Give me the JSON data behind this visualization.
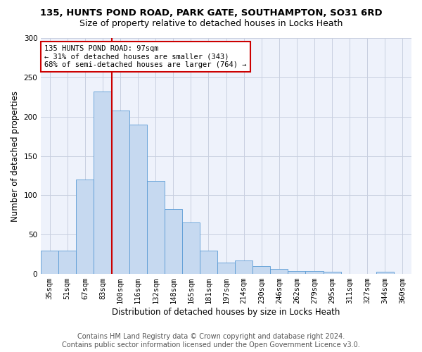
{
  "title": "135, HUNTS POND ROAD, PARK GATE, SOUTHAMPTON, SO31 6RD",
  "subtitle": "Size of property relative to detached houses in Locks Heath",
  "xlabel": "Distribution of detached houses by size in Locks Heath",
  "ylabel": "Number of detached properties",
  "categories": [
    "35sqm",
    "51sqm",
    "67sqm",
    "83sqm",
    "100sqm",
    "116sqm",
    "132sqm",
    "148sqm",
    "165sqm",
    "181sqm",
    "197sqm",
    "214sqm",
    "230sqm",
    "246sqm",
    "262sqm",
    "279sqm",
    "295sqm",
    "311sqm",
    "327sqm",
    "344sqm",
    "360sqm"
  ],
  "values": [
    30,
    30,
    120,
    232,
    208,
    190,
    118,
    82,
    65,
    30,
    14,
    17,
    10,
    6,
    4,
    4,
    3,
    0,
    0,
    3,
    0
  ],
  "bar_color": "#c6d9f0",
  "bar_edge_color": "#5b9bd5",
  "vline_x": 3.5,
  "vline_color": "#cc0000",
  "annotation_text": "135 HUNTS POND ROAD: 97sqm\n← 31% of detached houses are smaller (343)\n68% of semi-detached houses are larger (764) →",
  "annotation_box_color": "#ffffff",
  "annotation_box_edge": "#cc0000",
  "ylim": [
    0,
    300
  ],
  "yticks": [
    0,
    50,
    100,
    150,
    200,
    250,
    300
  ],
  "footer1": "Contains HM Land Registry data © Crown copyright and database right 2024.",
  "footer2": "Contains public sector information licensed under the Open Government Licence v3.0.",
  "bg_color": "#eef2fb",
  "grid_color": "#c8cfe0",
  "title_fontsize": 9.5,
  "subtitle_fontsize": 9,
  "axis_label_fontsize": 8.5,
  "tick_fontsize": 7.5,
  "footer_fontsize": 7
}
